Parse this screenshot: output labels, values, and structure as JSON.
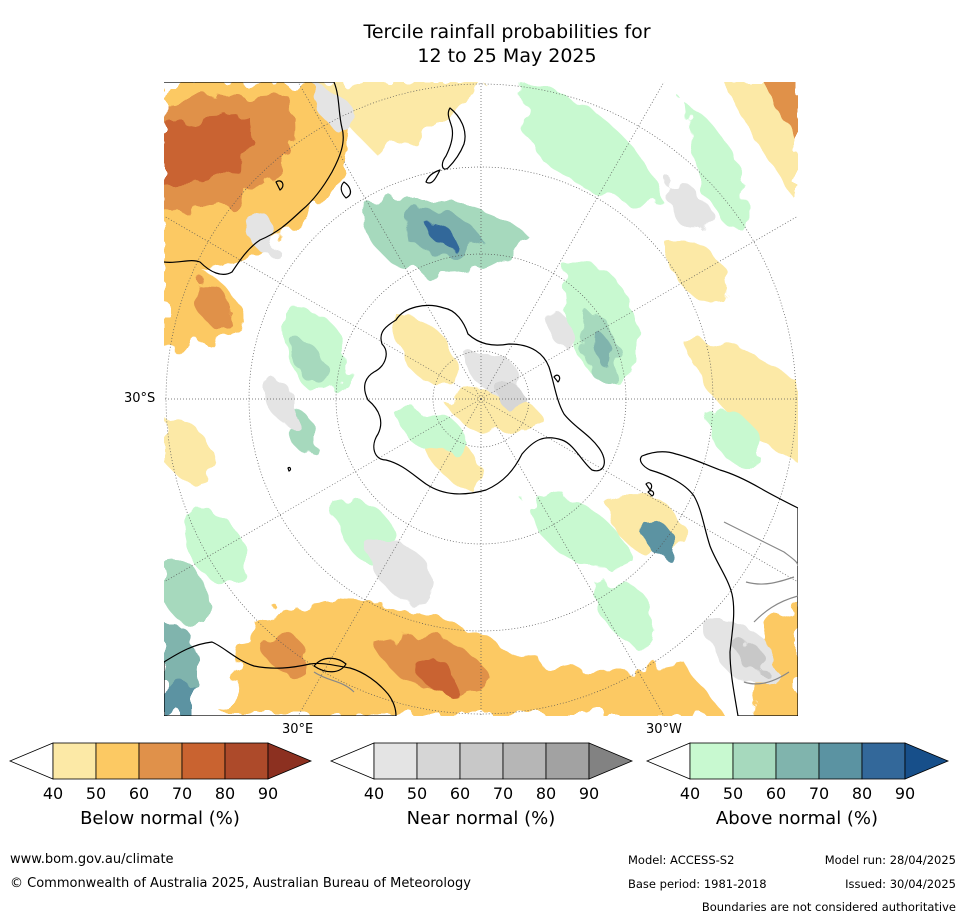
{
  "title": {
    "line1": "Tercile rainfall probabilities for",
    "line2": "12 to 25 May 2025"
  },
  "map": {
    "label_30S": "30°S",
    "label_30E": "30°E",
    "label_30W": "30°W"
  },
  "colorbars": [
    {
      "title": "Below normal (%)",
      "ticks": [
        "40",
        "50",
        "60",
        "70",
        "80",
        "90"
      ],
      "colors": [
        "#fce9a6",
        "#fcc963",
        "#e0914a",
        "#c96330",
        "#ad4a2a",
        "#8c3020"
      ]
    },
    {
      "title": "Near normal (%)",
      "ticks": [
        "40",
        "50",
        "60",
        "70",
        "80",
        "90"
      ],
      "colors": [
        "#e4e4e4",
        "#d6d6d6",
        "#c8c8c8",
        "#b6b6b6",
        "#a2a2a2",
        "#828282"
      ]
    },
    {
      "title": "Above normal (%)",
      "ticks": [
        "40",
        "50",
        "60",
        "70",
        "80",
        "90"
      ],
      "colors": [
        "#c8f9d0",
        "#a6d9bd",
        "#80b4ad",
        "#5b93a2",
        "#33689a",
        "#174f8a"
      ]
    }
  ],
  "footer": {
    "website": "www.bom.gov.au/climate",
    "copyright": "© Commonwealth of Australia 2025, Australian Bureau of Meteorology",
    "model": "Model: ACCESS-S2",
    "base_period": "Base period: 1981-2018",
    "model_run": "Model run: 28/04/2025",
    "issued": "Issued: 30/04/2025",
    "boundaries": "Boundaries are not considered authoritative"
  }
}
